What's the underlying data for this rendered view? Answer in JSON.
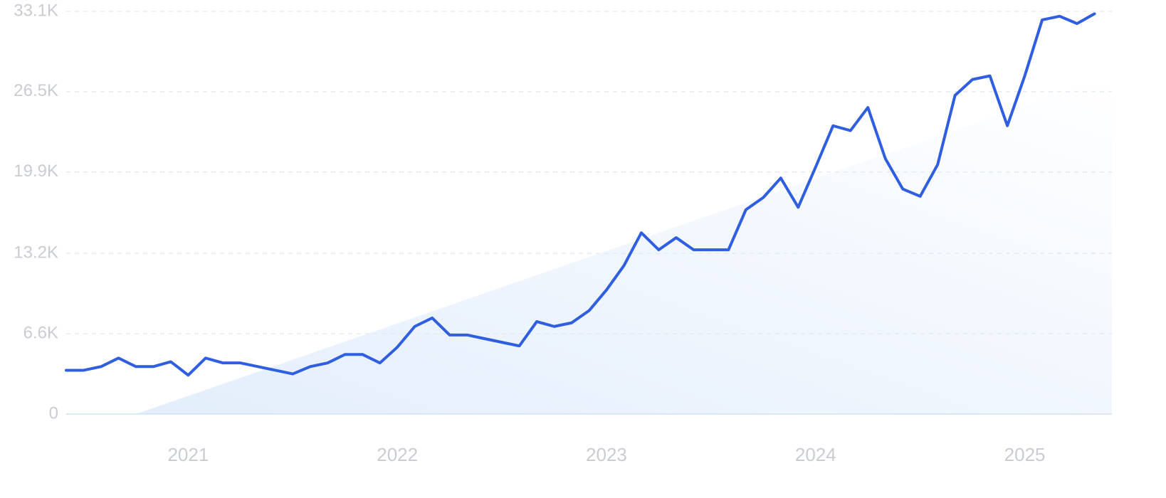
{
  "chart_data": {
    "type": "line",
    "title": "",
    "xlabel": "",
    "ylabel": "",
    "grid": true,
    "legend": "none",
    "colors": {
      "line": "#2f5ee0",
      "trend_fill_start": "#e3eefc",
      "trend_fill_end": "#ffffff",
      "grid": "#dfe7f1",
      "baseline": "#cfe3f6",
      "tick_text": "#c9ccd3"
    },
    "y_ticks": [
      {
        "value": 0,
        "label": "0"
      },
      {
        "value": 6600,
        "label": "6.6K"
      },
      {
        "value": 13200,
        "label": "13.2K"
      },
      {
        "value": 19900,
        "label": "19.9K"
      },
      {
        "value": 26500,
        "label": "26.5K"
      },
      {
        "value": 33100,
        "label": "33.1K"
      }
    ],
    "ylim": [
      0,
      33100
    ],
    "x_ticks": [
      {
        "value": "2021-01",
        "label": "2021"
      },
      {
        "value": "2022-01",
        "label": "2022"
      },
      {
        "value": "2023-01",
        "label": "2023"
      },
      {
        "value": "2024-01",
        "label": "2024"
      },
      {
        "value": "2025-01",
        "label": "2025"
      }
    ],
    "xlim": [
      "2020-06",
      "2025-06"
    ],
    "trend": {
      "start": {
        "x": "2020-10",
        "y": 0
      },
      "end": {
        "x": "2025-06",
        "y": 27800
      }
    },
    "series": [
      {
        "x": [
          "2020-06",
          "2020-07",
          "2020-08",
          "2020-09",
          "2020-10",
          "2020-11",
          "2020-12",
          "2021-01",
          "2021-02",
          "2021-03",
          "2021-04",
          "2021-05",
          "2021-06",
          "2021-07",
          "2021-08",
          "2021-09",
          "2021-10",
          "2021-11",
          "2021-12",
          "2022-01",
          "2022-02",
          "2022-03",
          "2022-04",
          "2022-05",
          "2022-06",
          "2022-07",
          "2022-08",
          "2022-09",
          "2022-10",
          "2022-11",
          "2022-12",
          "2023-01",
          "2023-02",
          "2023-03",
          "2023-04",
          "2023-05",
          "2023-06",
          "2023-07",
          "2023-08",
          "2023-09",
          "2023-10",
          "2023-11",
          "2023-12",
          "2024-01",
          "2024-02",
          "2024-03",
          "2024-04",
          "2024-05",
          "2024-06",
          "2024-07",
          "2024-08",
          "2024-09",
          "2024-10",
          "2024-11",
          "2024-12",
          "2025-01",
          "2025-02",
          "2025-03",
          "2025-04",
          "2025-05",
          "2025-06"
        ],
        "values": [
          3600,
          3600,
          3900,
          4600,
          3900,
          3900,
          4300,
          3200,
          4600,
          4200,
          4200,
          3900,
          3600,
          3300,
          3900,
          4200,
          4900,
          4900,
          4200,
          5500,
          7200,
          7900,
          6500,
          6500,
          6200,
          5900,
          5600,
          7600,
          7200,
          7500,
          8500,
          10200,
          12200,
          14900,
          13500,
          14500,
          13500,
          13500,
          13500,
          16800,
          17800,
          19400,
          17000,
          20300,
          23700,
          23300,
          25200,
          21000,
          18500,
          17900,
          20500,
          26200,
          27500,
          27800,
          23700,
          27800,
          32400,
          32700,
          32100,
          32900,
          null
        ]
      }
    ]
  }
}
